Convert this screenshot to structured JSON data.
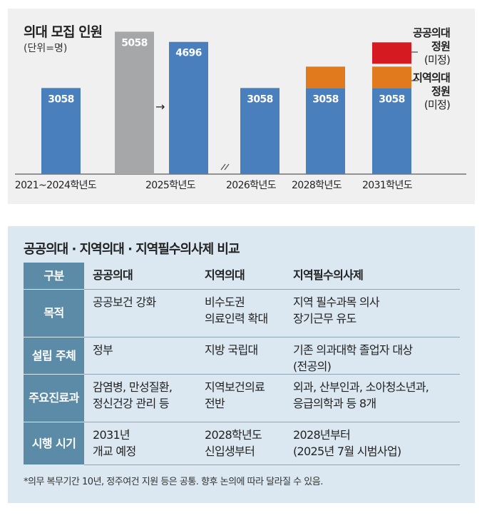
{
  "chart_data": {
    "type": "bar",
    "title": "의대 모집 인원",
    "unit": "(단위=명)",
    "categories": [
      "2021~2024학년도",
      "2025학년도",
      "2026학년도",
      "2028학년도",
      "2031학년도"
    ],
    "bars": [
      {
        "category": "2021~2024학년도",
        "value": 3058,
        "label": "3058",
        "color": "#4a7fbd"
      },
      {
        "category": "2025학년도",
        "value": 5058,
        "label": "5058",
        "color": "#a6a7a8"
      },
      {
        "category": "2025학년도",
        "value": 4696,
        "label": "4696",
        "color": "#4a7fbd"
      },
      {
        "category": "2026학년도",
        "value": 3058,
        "label": "3058",
        "color": "#4a7fbd"
      },
      {
        "category": "2028학년도",
        "value": 3058,
        "label": "3058",
        "color": "#4a7fbd",
        "stack": [
          {
            "name": "지역의대 정원",
            "color": "#e07a1c"
          }
        ]
      },
      {
        "category": "2031학년도",
        "value": 3058,
        "label": "3058",
        "color": "#4a7fbd",
        "stack": [
          {
            "name": "지역의대 정원",
            "color": "#e07a1c"
          },
          {
            "name": "공공의대 정원",
            "color": "#d51a22"
          }
        ]
      }
    ],
    "ylim": [
      0,
      5500
    ],
    "annotations": {
      "public": {
        "line1": "공공의대",
        "line2": "정원",
        "note": "(미정)"
      },
      "regional": {
        "line1": "지역의대",
        "line2": "정원",
        "note": "(미정)"
      },
      "arrow": "→"
    },
    "colors": {
      "blue": "#4a7fbd",
      "gray": "#a6a7a8",
      "orange": "#e07a1c",
      "red": "#d51a22"
    }
  },
  "comparison": {
    "title": "공공의대 · 지역의대 · 지역필수의사제 비교",
    "header": [
      "구분",
      "공공의대",
      "지역의대",
      "지역필수의사제"
    ],
    "rows": [
      {
        "label": "목적",
        "c1": [
          "공공보건 강화"
        ],
        "c2": [
          "비수도권",
          "의료인력 확대"
        ],
        "c3": [
          "지역 필수과목 의사",
          "장기근무 유도"
        ]
      },
      {
        "label": "설립 주체",
        "c1": [
          "정부"
        ],
        "c2": [
          "지방 국립대"
        ],
        "c3": [
          "기존 의과대학 졸업자 대상",
          "(전공의)"
        ]
      },
      {
        "label": "주요 진료과",
        "label_lines": [
          "주요",
          "진료과"
        ],
        "c1": [
          "감염병, 만성질환,",
          "정신건강 관리 등"
        ],
        "c2": [
          "지역보건의료",
          "전반"
        ],
        "c3": [
          "외과, 산부인과, 소아청소년과,",
          "응급의학과 등 8개"
        ]
      },
      {
        "label": "시행 시기",
        "c1": [
          "2031년",
          "개교 예정"
        ],
        "c2": [
          "2028학년도",
          "신입생부터"
        ],
        "c3": [
          "2028년부터",
          "(2025년 7월 시범사업)"
        ]
      }
    ],
    "footnote": "*의무 복무기간 10년, 정주여건 지원 등은 공통. 향후 논의에 따라 달라질 수 있음."
  }
}
